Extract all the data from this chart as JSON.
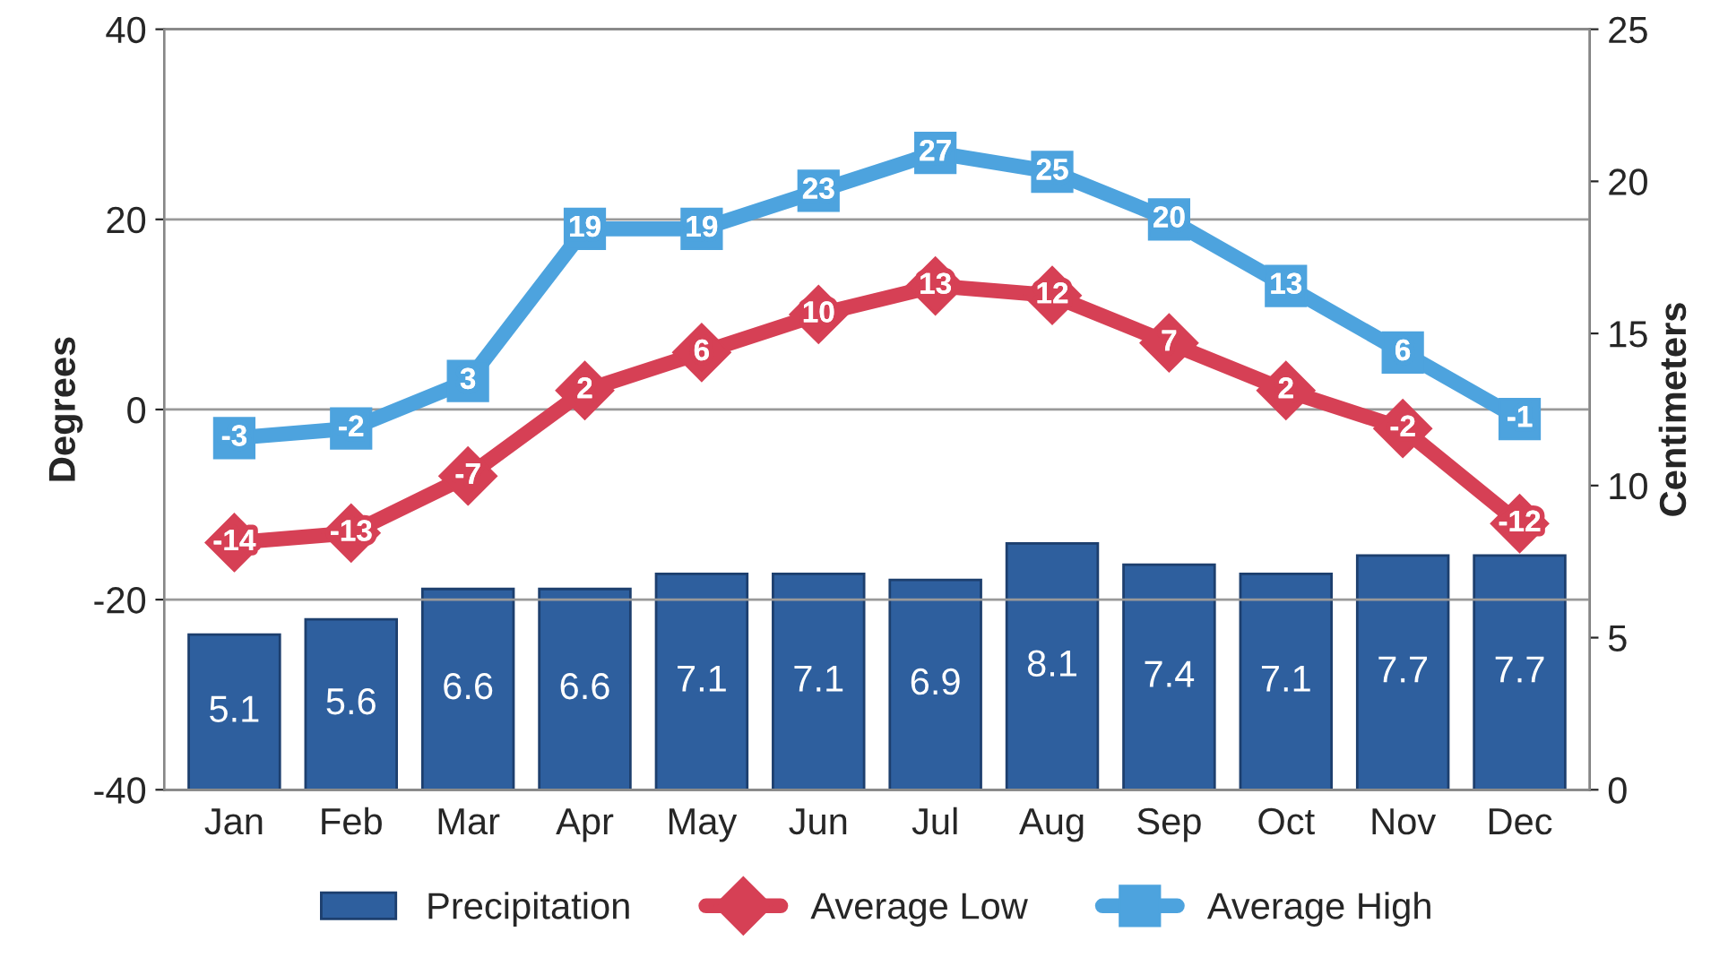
{
  "chart_data": {
    "type": "line",
    "categories": [
      "Jan",
      "Feb",
      "Mar",
      "Apr",
      "May",
      "Jun",
      "Jul",
      "Aug",
      "Sep",
      "Oct",
      "Nov",
      "Dec"
    ],
    "series": [
      {
        "name": "Precipitation",
        "type": "bar",
        "axis": "y2",
        "color": "#2e5f9e",
        "values": [
          5.1,
          5.6,
          6.6,
          6.6,
          7.1,
          7.1,
          6.9,
          8.1,
          7.4,
          7.1,
          7.7,
          7.7
        ]
      },
      {
        "name": "Average Low",
        "marker": "diamond",
        "color": "#d64055",
        "values": [
          -14,
          -13,
          -7,
          2,
          6,
          10,
          13,
          12,
          7,
          2,
          -2,
          -12
        ]
      },
      {
        "name": "Average High",
        "marker": "square",
        "color": "#4da3de",
        "values": [
          -3,
          -2,
          3,
          19,
          19,
          23,
          27,
          25,
          20,
          13,
          6,
          -1
        ]
      }
    ],
    "ylabel": "Degrees",
    "y2label": "Centimeters",
    "ylim": [
      -40,
      40
    ],
    "yticks": [
      -40,
      -20,
      0,
      20,
      40
    ],
    "y2lim": [
      0,
      25
    ],
    "y2ticks": [
      0,
      5,
      10,
      15,
      20,
      25
    ],
    "grid": "y",
    "legend": "bottom",
    "data_labels": true
  }
}
